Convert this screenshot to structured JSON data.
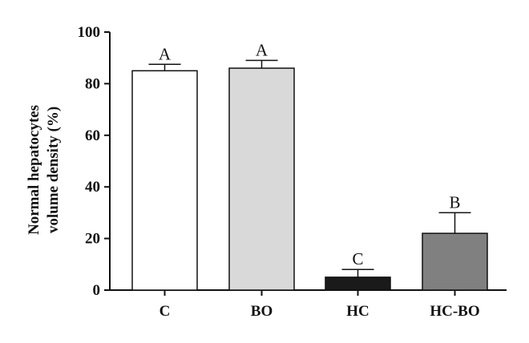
{
  "chart_data": {
    "type": "bar",
    "categories": [
      "C",
      "BO",
      "HC",
      "HC-BO"
    ],
    "values": [
      85,
      86,
      5,
      22
    ],
    "errors": [
      2.5,
      3,
      3,
      8
    ],
    "significance_letters": [
      "A",
      "A",
      "C",
      "B"
    ],
    "bar_colors": [
      "#ffffff",
      "#d9d9d9",
      "#1a1a1a",
      "#808080"
    ],
    "ylabel_lines": [
      "Normal hepatocytes",
      "volume density (%)"
    ],
    "ylim": [
      0,
      100
    ],
    "yticks": [
      0,
      20,
      40,
      60,
      80,
      100
    ],
    "ytick_labels": [
      "0",
      "20",
      "40",
      "60",
      "80",
      "100"
    ],
    "grid": false,
    "legend": "none"
  }
}
